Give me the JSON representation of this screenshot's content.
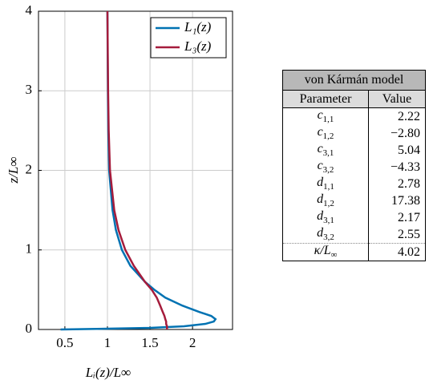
{
  "chart_data": {
    "type": "line",
    "x_label": "Lᵢ(z)/L∞",
    "y_label": "z/L∞",
    "z": [
      0,
      0.01,
      0.02,
      0.04,
      0.07,
      0.1,
      0.13,
      0.17,
      0.22,
      0.3,
      0.4,
      0.5,
      0.6,
      0.8,
      1,
      1.25,
      1.5,
      2,
      2.5,
      3,
      4
    ],
    "series": [
      {
        "name": "L₁(z)",
        "color": "#0072b2",
        "values": [
          0.45,
          1.0,
          1.5,
          1.9,
          2.15,
          2.25,
          2.27,
          2.22,
          2.08,
          1.88,
          1.68,
          1.55,
          1.44,
          1.27,
          1.17,
          1.1,
          1.06,
          1.02,
          1.01,
          1.005,
          1.0
        ]
      },
      {
        "name": "L₃(z)",
        "color": "#a51c3c",
        "values": [
          1.7,
          1.7,
          1.7,
          1.7,
          1.69,
          1.69,
          1.68,
          1.67,
          1.65,
          1.62,
          1.58,
          1.52,
          1.44,
          1.31,
          1.21,
          1.13,
          1.08,
          1.03,
          1.015,
          1.008,
          1.0
        ]
      }
    ],
    "xlim": [
      0.19,
      2.47
    ],
    "ylim": [
      0,
      4
    ],
    "xticks": [
      0.5,
      1,
      1.5,
      2
    ],
    "yticks": [
      0,
      1,
      2,
      3,
      4
    ],
    "grid": true,
    "legend": "upper right"
  },
  "table": {
    "title": "von Kármán model",
    "headers": [
      "Parameter",
      "Value"
    ],
    "rows": [
      {
        "symbol": "c",
        "sub": "1,1",
        "value": "2.22"
      },
      {
        "symbol": "c",
        "sub": "1,2",
        "value": "−2.80"
      },
      {
        "symbol": "c",
        "sub": "3,1",
        "value": "5.04"
      },
      {
        "symbol": "c",
        "sub": "3,2",
        "value": "−4.33"
      },
      {
        "symbol": "d",
        "sub": "1,1",
        "value": "2.78"
      },
      {
        "symbol": "d",
        "sub": "1,2",
        "value": "17.38"
      },
      {
        "symbol": "d",
        "sub": "3,1",
        "value": "2.17"
      },
      {
        "symbol": "d",
        "sub": "3,2",
        "value": "2.55"
      },
      {
        "symbol": "κ/L",
        "sub": "∞",
        "value": "4.02"
      }
    ]
  }
}
